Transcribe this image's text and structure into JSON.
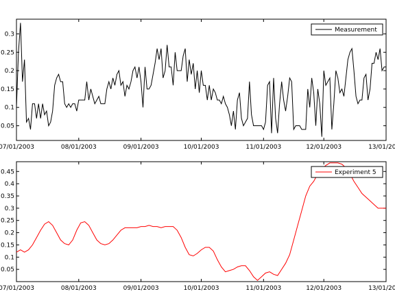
{
  "chart_data": [
    {
      "type": "line",
      "name": "top",
      "title": "",
      "xlabel": "",
      "ylabel": "",
      "xlim": [
        0,
        184
      ],
      "ylim": [
        0.01,
        0.34
      ],
      "x_ticks": [
        {
          "pos": 0,
          "label": "07/01/2003"
        },
        {
          "pos": 31,
          "label": "08/01/2003"
        },
        {
          "pos": 62,
          "label": "09/01/2003"
        },
        {
          "pos": 92,
          "label": "10/01/2003"
        },
        {
          "pos": 123,
          "label": "11/01/2003"
        },
        {
          "pos": 153,
          "label": "12/01/2003"
        },
        {
          "pos": 184,
          "label": "13/01/2003"
        }
      ],
      "y_ticks": [
        0.05,
        0.1,
        0.15,
        0.2,
        0.25,
        0.3
      ],
      "y_tick_labels": [
        "0.05",
        "0.1",
        "0.15",
        "0.2",
        "0.25",
        "0.3"
      ],
      "legend": "top-right",
      "series": [
        {
          "name": "Measurement",
          "color": "#000000",
          "x": [
            0,
            1,
            2,
            3,
            4,
            5,
            6,
            7,
            8,
            9,
            10,
            11,
            12,
            13,
            14,
            15,
            16,
            17,
            18,
            19,
            20,
            21,
            22,
            23,
            24,
            25,
            26,
            27,
            28,
            29,
            30,
            31,
            32,
            33,
            34,
            35,
            36,
            37,
            38,
            39,
            40,
            41,
            42,
            43,
            44,
            45,
            46,
            47,
            48,
            49,
            50,
            51,
            52,
            53,
            54,
            55,
            56,
            57,
            58,
            59,
            60,
            61,
            62,
            63,
            64,
            65,
            66,
            67,
            68,
            69,
            70,
            71,
            72,
            73,
            74,
            75,
            76,
            77,
            78,
            79,
            80,
            81,
            82,
            83,
            84,
            85,
            86,
            87,
            88,
            89,
            90,
            91,
            92,
            93,
            94,
            95,
            96,
            97,
            98,
            99,
            100,
            101,
            102,
            103,
            104,
            105,
            106,
            107,
            108,
            109,
            110,
            111,
            112,
            113,
            114,
            115,
            116,
            117,
            118,
            119,
            120,
            121,
            122,
            123,
            124,
            125,
            126,
            127,
            128,
            129,
            130,
            131,
            132,
            133,
            134,
            135,
            136,
            137,
            138,
            139,
            140,
            141,
            142,
            143,
            144,
            145,
            146,
            147,
            148,
            149,
            150,
            151,
            152,
            153,
            154,
            155,
            156,
            157,
            158,
            159,
            160,
            161,
            162,
            163,
            164,
            165,
            166,
            167,
            168,
            169,
            170,
            171,
            172,
            173,
            174,
            175,
            176,
            177,
            178,
            179,
            180,
            181,
            182,
            183,
            184
          ],
          "values": [
            0.1,
            0.25,
            0.33,
            0.17,
            0.23,
            0.06,
            0.07,
            0.04,
            0.11,
            0.11,
            0.07,
            0.11,
            0.07,
            0.11,
            0.08,
            0.09,
            0.05,
            0.06,
            0.09,
            0.16,
            0.18,
            0.19,
            0.17,
            0.17,
            0.11,
            0.1,
            0.11,
            0.1,
            0.11,
            0.11,
            0.09,
            0.12,
            0.12,
            0.12,
            0.12,
            0.17,
            0.12,
            0.15,
            0.13,
            0.11,
            0.12,
            0.13,
            0.11,
            0.11,
            0.11,
            0.15,
            0.17,
            0.15,
            0.18,
            0.16,
            0.19,
            0.2,
            0.16,
            0.17,
            0.13,
            0.16,
            0.15,
            0.17,
            0.2,
            0.21,
            0.18,
            0.21,
            0.17,
            0.1,
            0.21,
            0.15,
            0.15,
            0.16,
            0.19,
            0.22,
            0.26,
            0.23,
            0.26,
            0.18,
            0.2,
            0.27,
            0.21,
            0.21,
            0.16,
            0.25,
            0.2,
            0.2,
            0.2,
            0.24,
            0.26,
            0.17,
            0.23,
            0.19,
            0.22,
            0.15,
            0.2,
            0.14,
            0.2,
            0.16,
            0.16,
            0.12,
            0.16,
            0.12,
            0.15,
            0.14,
            0.12,
            0.12,
            0.11,
            0.13,
            0.11,
            0.1,
            0.08,
            0.05,
            0.09,
            0.04,
            0.12,
            0.14,
            0.07,
            0.05,
            0.06,
            0.07,
            0.17,
            0.08,
            0.05,
            0.05,
            0.05,
            0.05,
            0.05,
            0.04,
            0.06,
            0.16,
            0.17,
            0.03,
            0.18,
            0.07,
            0.03,
            0.11,
            0.17,
            0.12,
            0.09,
            0.13,
            0.18,
            0.17,
            0.04,
            0.05,
            0.05,
            0.05,
            0.04,
            0.04,
            0.04,
            0.15,
            0.1,
            0.18,
            0.14,
            0.05,
            0.15,
            0.11,
            0.02,
            0.2,
            0.16,
            0.17,
            0.18,
            0.04,
            0.11,
            0.2,
            0.18,
            0.14,
            0.15,
            0.13,
            0.18,
            0.23,
            0.25,
            0.26,
            0.2,
            0.13,
            0.11,
            0.12,
            0.12,
            0.18,
            0.19,
            0.12,
            0.15,
            0.22,
            0.22,
            0.25,
            0.23,
            0.26,
            0.2,
            0.21,
            0.21
          ],
          "note": "Daily values read approximately from plot"
        }
      ]
    },
    {
      "type": "line",
      "name": "bottom",
      "title": "",
      "xlabel": "",
      "ylabel": "",
      "xlim": [
        0,
        184
      ],
      "ylim": [
        0,
        0.49
      ],
      "x_ticks": [
        {
          "pos": 0,
          "label": "07/01/2003"
        },
        {
          "pos": 31,
          "label": "08/01/2003"
        },
        {
          "pos": 62,
          "label": "09/01/2003"
        },
        {
          "pos": 92,
          "label": "10/01/2003"
        },
        {
          "pos": 123,
          "label": "11/01/2003"
        },
        {
          "pos": 153,
          "label": "12/01/2003"
        },
        {
          "pos": 184,
          "label": "13/01/2003"
        }
      ],
      "y_ticks": [
        0.05,
        0.1,
        0.15,
        0.2,
        0.25,
        0.3,
        0.35,
        0.4,
        0.45
      ],
      "y_tick_labels": [
        "0.05",
        "0.1",
        "0.15",
        "0.2",
        "0.25",
        "0.3",
        "0.35",
        "0.4",
        "0.45"
      ],
      "legend": "top-right",
      "series": [
        {
          "name": "Experiment 5",
          "color": "#ff0000",
          "x": [
            0,
            2,
            4,
            6,
            8,
            10,
            12,
            14,
            16,
            18,
            20,
            22,
            24,
            26,
            28,
            30,
            32,
            34,
            36,
            38,
            40,
            42,
            44,
            46,
            48,
            50,
            52,
            54,
            56,
            58,
            60,
            62,
            64,
            66,
            68,
            70,
            72,
            74,
            76,
            78,
            80,
            82,
            84,
            86,
            88,
            90,
            92,
            94,
            96,
            98,
            100,
            102,
            104,
            106,
            108,
            110,
            112,
            114,
            116,
            118,
            120,
            122,
            124,
            126,
            128,
            130,
            132,
            134,
            136,
            138,
            140,
            142,
            144,
            146,
            148,
            150,
            152,
            154,
            156,
            158,
            160,
            162,
            164,
            166,
            168,
            170,
            172,
            174,
            176,
            178,
            180,
            182,
            184
          ],
          "values": [
            0.12,
            0.13,
            0.12,
            0.13,
            0.15,
            0.18,
            0.21,
            0.235,
            0.245,
            0.23,
            0.2,
            0.17,
            0.155,
            0.15,
            0.17,
            0.21,
            0.24,
            0.245,
            0.23,
            0.2,
            0.17,
            0.155,
            0.15,
            0.155,
            0.17,
            0.19,
            0.21,
            0.22,
            0.22,
            0.22,
            0.22,
            0.225,
            0.225,
            0.23,
            0.225,
            0.225,
            0.22,
            0.225,
            0.225,
            0.225,
            0.21,
            0.18,
            0.14,
            0.11,
            0.105,
            0.115,
            0.13,
            0.14,
            0.14,
            0.125,
            0.09,
            0.06,
            0.04,
            0.045,
            0.05,
            0.06,
            0.065,
            0.065,
            0.045,
            0.02,
            0.005,
            0.02,
            0.035,
            0.04,
            0.03,
            0.025,
            0.05,
            0.075,
            0.11,
            0.17,
            0.23,
            0.29,
            0.35,
            0.39,
            0.41,
            0.44,
            0.46,
            0.475,
            0.485,
            0.485,
            0.485,
            0.48,
            0.465,
            0.44,
            0.41,
            0.385,
            0.36,
            0.345,
            0.33,
            0.315,
            0.3,
            0.3,
            0.3
          ]
        }
      ]
    }
  ]
}
